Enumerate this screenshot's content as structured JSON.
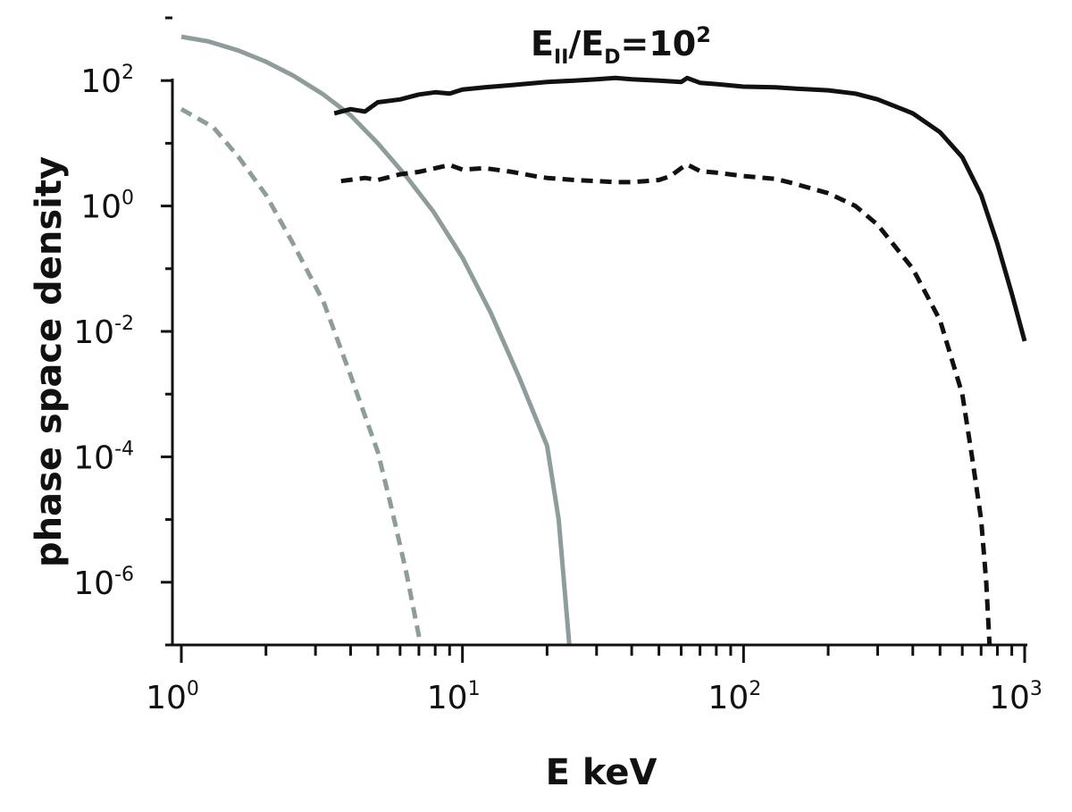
{
  "chart_data": {
    "type": "line",
    "title": {
      "base1": "E",
      "sub1": "II",
      "mid": "/E",
      "sub2": "D",
      "eq": "=10",
      "sup": "2"
    },
    "xlabel": "E keV",
    "ylabel": "phase space density",
    "xscale": "log",
    "yscale": "log",
    "xlim": [
      1,
      1000
    ],
    "ylim": [
      1e-07,
      1000
    ],
    "grid": false,
    "legend": "none",
    "x_ticks": [
      {
        "value": 1,
        "base": "10",
        "exp": "0"
      },
      {
        "value": 10,
        "base": "10",
        "exp": "1"
      },
      {
        "value": 100,
        "base": "10",
        "exp": "2"
      },
      {
        "value": 1000,
        "base": "10",
        "exp": "3"
      }
    ],
    "y_ticks": [
      {
        "value": 1e-06,
        "base": "10",
        "exp": "-6"
      },
      {
        "value": 0.0001,
        "base": "10",
        "exp": "-4"
      },
      {
        "value": 0.01,
        "base": "10",
        "exp": "-2"
      },
      {
        "value": 1,
        "base": "10",
        "exp": "0"
      },
      {
        "value": 100,
        "base": "10",
        "exp": "2"
      }
    ],
    "series": [
      {
        "color": "#8f9c9c",
        "dashed": false,
        "points": [
          [
            1.0,
            500
          ],
          [
            1.25,
            420
          ],
          [
            1.6,
            300
          ],
          [
            2.0,
            200
          ],
          [
            2.5,
            120
          ],
          [
            3.2,
            60
          ],
          [
            4.0,
            28
          ],
          [
            5.0,
            10
          ],
          [
            6.3,
            3
          ],
          [
            7.9,
            0.8
          ],
          [
            10,
            0.15
          ],
          [
            12.6,
            0.02
          ],
          [
            15.8,
            0.002
          ],
          [
            20,
            0.00015
          ],
          [
            22,
            1e-05
          ],
          [
            24,
            1e-07
          ]
        ]
      },
      {
        "color": "#8f9c9c",
        "dashed": true,
        "points": [
          [
            1.0,
            35
          ],
          [
            1.3,
            18
          ],
          [
            1.6,
            6
          ],
          [
            2.0,
            1.5
          ],
          [
            2.5,
            0.25
          ],
          [
            3.2,
            0.03
          ],
          [
            4.0,
            0.002
          ],
          [
            5.0,
            0.00012
          ],
          [
            5.6,
            1.5e-05
          ],
          [
            6.3,
            1.5e-06
          ],
          [
            7.1,
            1e-07
          ]
        ]
      },
      {
        "color": "#111111",
        "dashed": false,
        "points": [
          [
            3.5,
            30
          ],
          [
            4.0,
            35
          ],
          [
            4.5,
            32
          ],
          [
            5.0,
            45
          ],
          [
            6.0,
            50
          ],
          [
            7.0,
            60
          ],
          [
            8.0,
            65
          ],
          [
            9.0,
            62
          ],
          [
            10,
            72
          ],
          [
            12,
            78
          ],
          [
            15,
            85
          ],
          [
            20,
            95
          ],
          [
            25,
            100
          ],
          [
            30,
            105
          ],
          [
            35,
            110
          ],
          [
            40,
            105
          ],
          [
            50,
            100
          ],
          [
            60,
            95
          ],
          [
            63,
            110
          ],
          [
            70,
            92
          ],
          [
            80,
            88
          ],
          [
            100,
            80
          ],
          [
            130,
            78
          ],
          [
            150,
            75
          ],
          [
            200,
            70
          ],
          [
            250,
            62
          ],
          [
            300,
            50
          ],
          [
            400,
            30
          ],
          [
            500,
            15
          ],
          [
            600,
            6
          ],
          [
            700,
            1.5
          ],
          [
            800,
            0.25
          ],
          [
            900,
            0.04
          ],
          [
            1000,
            0.007
          ]
        ]
      },
      {
        "color": "#111111",
        "dashed": true,
        "points": [
          [
            3.7,
            2.5
          ],
          [
            4.5,
            2.8
          ],
          [
            5.0,
            2.6
          ],
          [
            6.0,
            3.2
          ],
          [
            7.0,
            3.5
          ],
          [
            8.0,
            4.0
          ],
          [
            9.0,
            4.5
          ],
          [
            10,
            3.8
          ],
          [
            12,
            4.0
          ],
          [
            15,
            3.5
          ],
          [
            18,
            3.0
          ],
          [
            20,
            2.8
          ],
          [
            25,
            2.6
          ],
          [
            30,
            2.5
          ],
          [
            35,
            2.4
          ],
          [
            40,
            2.4
          ],
          [
            45,
            2.5
          ],
          [
            50,
            2.6
          ],
          [
            55,
            3.0
          ],
          [
            60,
            4.0
          ],
          [
            63,
            4.6
          ],
          [
            70,
            3.6
          ],
          [
            80,
            3.4
          ],
          [
            100,
            3.0
          ],
          [
            130,
            2.7
          ],
          [
            150,
            2.3
          ],
          [
            200,
            1.6
          ],
          [
            250,
            1.0
          ],
          [
            300,
            0.5
          ],
          [
            400,
            0.1
          ],
          [
            500,
            0.015
          ],
          [
            600,
            0.001
          ],
          [
            650,
            0.0001
          ],
          [
            700,
            1e-05
          ],
          [
            730,
            1e-06
          ],
          [
            750,
            1e-07
          ]
        ]
      }
    ]
  }
}
